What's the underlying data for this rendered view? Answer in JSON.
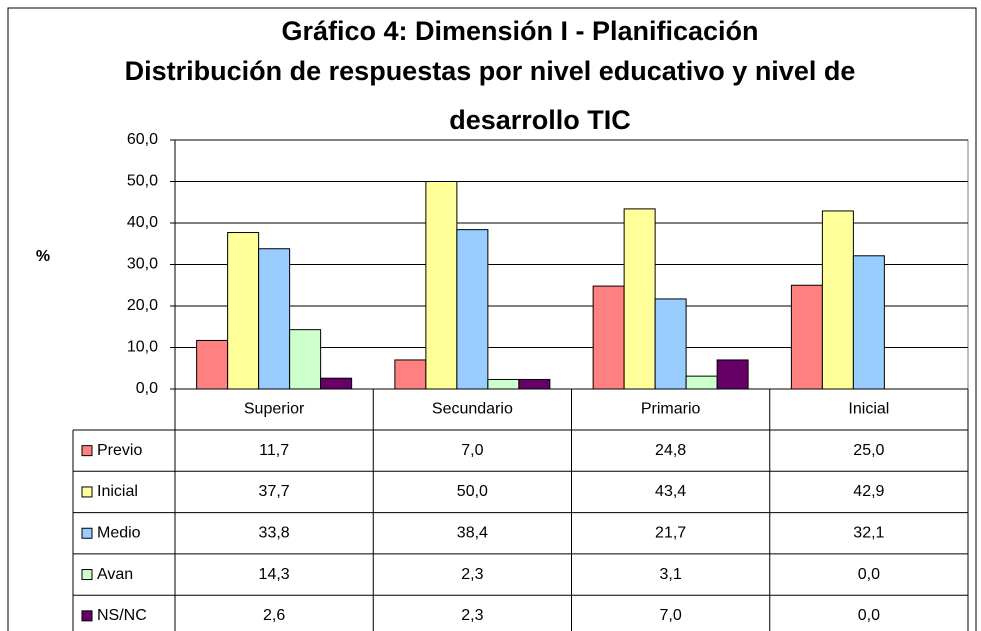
{
  "chart_data": {
    "type": "bar",
    "title": [
      "Gráfico 4: Dimensión I - Planificación",
      "Distribución de respuestas por nivel educativo y nivel de",
      "desarrollo TIC"
    ],
    "y_label": "%",
    "categories": [
      "Superior",
      "Secundario",
      "Primario",
      "Inicial"
    ],
    "series": [
      {
        "name": "Previo",
        "color": "#ff8080",
        "values": [
          11.7,
          7.0,
          24.8,
          25.0
        ],
        "value_labels": [
          "11,7",
          "7,0",
          "24,8",
          "25,0"
        ]
      },
      {
        "name": "Inicial",
        "color": "#ffff99",
        "values": [
          37.7,
          50.0,
          43.4,
          42.9
        ],
        "value_labels": [
          "37,7",
          "50,0",
          "43,4",
          "42,9"
        ]
      },
      {
        "name": "Medio",
        "color": "#99ccff",
        "values": [
          33.8,
          38.4,
          21.7,
          32.1
        ],
        "value_labels": [
          "33,8",
          "38,4",
          "21,7",
          "32,1"
        ]
      },
      {
        "name": "Avan",
        "color": "#ccffcc",
        "values": [
          14.3,
          2.3,
          3.1,
          0.0
        ],
        "value_labels": [
          "14,3",
          "2,3",
          "3,1",
          "0,0"
        ]
      },
      {
        "name": "NS/NC",
        "color": "#660066",
        "values": [
          2.6,
          2.3,
          7.0,
          0.0
        ],
        "value_labels": [
          "2,6",
          "2,3",
          "7,0",
          "0,0"
        ]
      }
    ],
    "ylim": [
      0,
      60
    ],
    "yticks": [
      {
        "value": 0,
        "label": "0,0"
      },
      {
        "value": 10,
        "label": "10,0"
      },
      {
        "value": 20,
        "label": "20,0"
      },
      {
        "value": 30,
        "label": "30,0"
      },
      {
        "value": 40,
        "label": "40,0"
      },
      {
        "value": 50,
        "label": "50,0"
      },
      {
        "value": 60,
        "label": "60,0"
      }
    ],
    "grid": true
  }
}
